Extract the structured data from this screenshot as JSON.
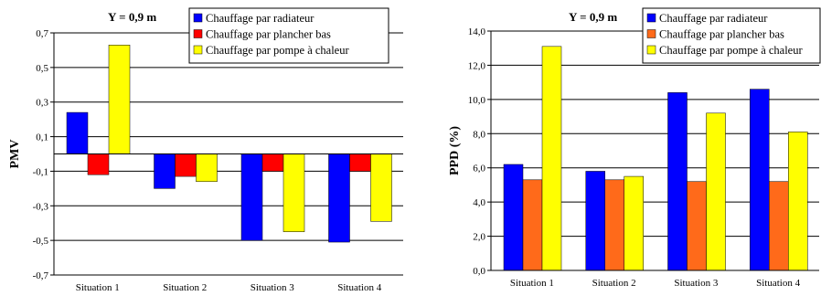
{
  "colors": {
    "radiateur_pmv": "#0000ff",
    "plancher_pmv": "#ff0000",
    "pompe": "#ffff00",
    "radiateur_ppd": "#0000ff",
    "plancher_ppd": "#ff6a1a",
    "grid": "#000000"
  },
  "chart_data": [
    {
      "type": "bar",
      "header": "Y = 0,9 m",
      "ylabel": "PMV",
      "ylim": [
        -0.7,
        0.7
      ],
      "yticks": [
        "0,7",
        "0,5",
        "0,3",
        "0,1",
        "-0,1",
        "-0,3",
        "-0,5",
        "-0,7"
      ],
      "categories": [
        "Situation 1",
        "Situation 2",
        "Situation 3",
        "Situation 4"
      ],
      "legend_position": "top-right",
      "grid": true,
      "series": [
        {
          "name": "Chauffage par radiateur",
          "values": [
            0.24,
            -0.2,
            -0.5,
            -0.51
          ]
        },
        {
          "name": "Chauffage par plancher bas",
          "values": [
            -0.12,
            -0.13,
            -0.1,
            -0.1
          ]
        },
        {
          "name": "Chauffage par pompe à chaleur",
          "values": [
            0.63,
            -0.16,
            -0.45,
            -0.39
          ]
        }
      ]
    },
    {
      "type": "bar",
      "header": "Y = 0,9 m",
      "ylabel": "PPD (%)",
      "ylim": [
        0,
        14
      ],
      "yticks": [
        "14,0",
        "12,0",
        "10,0",
        "8,0",
        "6,0",
        "4,0",
        "2,0",
        "0,0"
      ],
      "categories": [
        "Situation 1",
        "Situation 2",
        "Situation 3",
        "Situation 4"
      ],
      "legend_position": "top-right",
      "grid": true,
      "series": [
        {
          "name": "Chauffage par radiateur",
          "values": [
            6.2,
            5.8,
            10.4,
            10.6
          ]
        },
        {
          "name": "Chauffage par plancher bas",
          "values": [
            5.3,
            5.3,
            5.2,
            5.2
          ]
        },
        {
          "name": "Chauffage par pompe à chaleur",
          "values": [
            13.1,
            5.5,
            9.2,
            8.1
          ]
        }
      ]
    }
  ]
}
